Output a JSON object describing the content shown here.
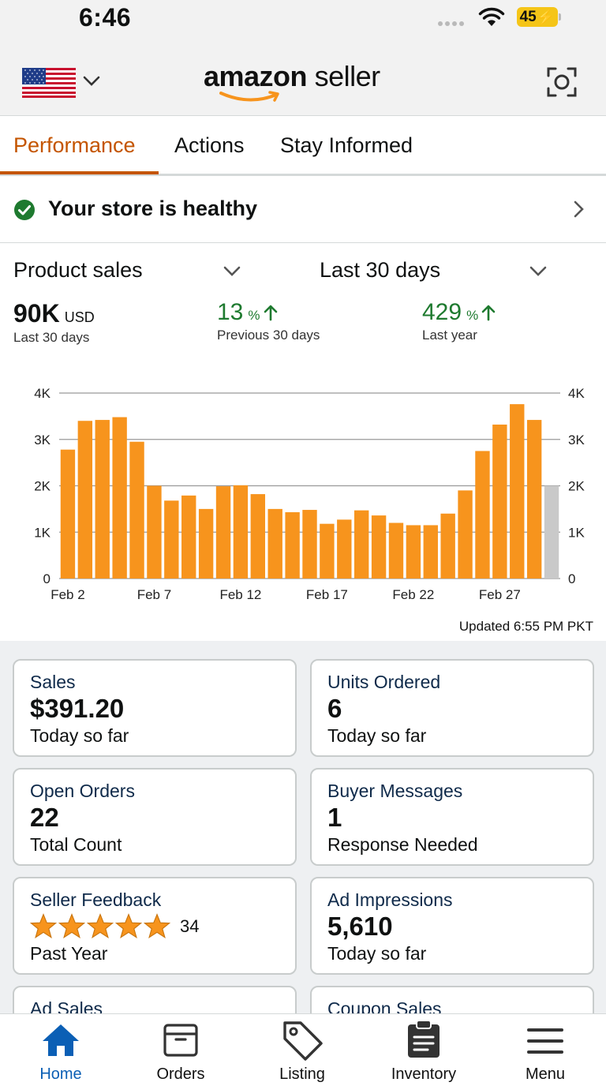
{
  "status_bar": {
    "time": "6:46",
    "battery": "45"
  },
  "header": {
    "logo_brand": "amazon",
    "logo_suffix": "seller"
  },
  "tabs": [
    {
      "label": "Performance",
      "active": true
    },
    {
      "label": "Actions",
      "active": false
    },
    {
      "label": "Stay Informed",
      "active": false
    }
  ],
  "health": {
    "text": "Your store is healthy"
  },
  "sales": {
    "metric_dropdown": "Product sales",
    "range_dropdown": "Last 30 days",
    "total_value": "90K",
    "total_unit": "USD",
    "total_label": "Last 30 days",
    "prev_pct": "13",
    "prev_pct_unit": "%",
    "prev_label": "Previous 30 days",
    "year_pct": "429",
    "year_pct_unit": "%",
    "year_label": "Last year",
    "updated": "Updated 6:55 PM PKT"
  },
  "chart_data": {
    "type": "bar",
    "categories": [
      "Feb 2",
      "Feb 3",
      "Feb 4",
      "Feb 5",
      "Feb 6",
      "Feb 7",
      "Feb 8",
      "Feb 9",
      "Feb 10",
      "Feb 11",
      "Feb 12",
      "Feb 13",
      "Feb 14",
      "Feb 15",
      "Feb 16",
      "Feb 17",
      "Feb 18",
      "Feb 19",
      "Feb 20",
      "Feb 21",
      "Feb 22",
      "Feb 23",
      "Feb 24",
      "Feb 25",
      "Feb 26",
      "Feb 27",
      "Feb 28",
      "Feb 29",
      "Mar 1"
    ],
    "tick_labels": [
      "Feb 2",
      "Feb 7",
      "Feb 12",
      "Feb 17",
      "Feb 22",
      "Feb 27"
    ],
    "values": [
      2780,
      3400,
      3420,
      3480,
      2950,
      2000,
      1680,
      1790,
      1500,
      1990,
      2010,
      1820,
      1500,
      1430,
      1480,
      1180,
      1270,
      1470,
      1360,
      1200,
      1150,
      1150,
      1400,
      1900,
      2750,
      3320,
      3760,
      3420,
      2000
    ],
    "partial_last": true,
    "y_ticks": [
      "0",
      "1K",
      "2K",
      "3K",
      "4K"
    ],
    "ylim": [
      0,
      4000
    ],
    "colors": {
      "bar": "#f7941d",
      "partial": "#c9c9c9",
      "grid": "#999999"
    }
  },
  "cards": [
    {
      "title": "Sales",
      "value": "$391.20",
      "sub": "Today so far"
    },
    {
      "title": "Units Ordered",
      "value": "6",
      "sub": "Today so far"
    },
    {
      "title": "Open Orders",
      "value": "22",
      "sub": "Total Count"
    },
    {
      "title": "Buyer Messages",
      "value": "1",
      "sub": "Response Needed"
    },
    {
      "title": "Seller Feedback",
      "rating": 5,
      "count": "34",
      "sub": "Past Year"
    },
    {
      "title": "Ad Impressions",
      "value": "5,610",
      "sub": "Today so far"
    },
    {
      "title": "Ad Sales"
    },
    {
      "title": "Coupon Sales"
    }
  ],
  "nav": [
    {
      "label": "Home",
      "icon": "home-icon",
      "active": true
    },
    {
      "label": "Orders",
      "icon": "orders-box-icon",
      "active": false
    },
    {
      "label": "Listing",
      "icon": "tag-icon",
      "active": false
    },
    {
      "label": "Inventory",
      "icon": "clipboard-icon",
      "active": false
    },
    {
      "label": "Menu",
      "icon": "hamburger-menu-icon",
      "active": false
    }
  ],
  "colors": {
    "accent": "#c45500",
    "positive": "#1e7a2f",
    "nav_active": "#0b5fb5",
    "star": "#f7941d"
  }
}
